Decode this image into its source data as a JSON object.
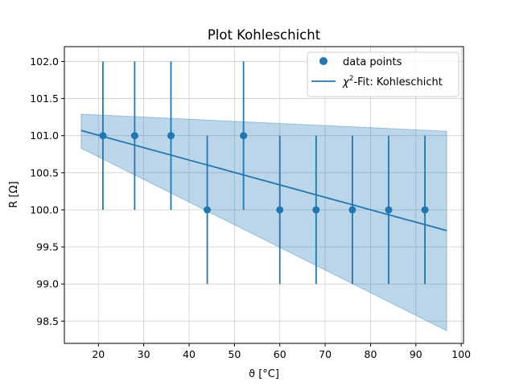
{
  "chart_data": {
    "type": "scatter",
    "title": "Plot Kohleschicht",
    "xlabel": "ϑ [°C]",
    "ylabel": "R [Ω]",
    "xlim": [
      12.5,
      100.5
    ],
    "ylim": [
      98.2,
      102.2
    ],
    "grid": true,
    "legend_position": "top-right",
    "x_ticks": [
      20,
      30,
      40,
      50,
      60,
      70,
      80,
      90,
      100
    ],
    "y_ticks": [
      98.5,
      99.0,
      99.5,
      100.0,
      100.5,
      101.0,
      101.5,
      102.0
    ],
    "x_tick_labels": [
      "20",
      "30",
      "40",
      "50",
      "60",
      "70",
      "80",
      "90",
      "100"
    ],
    "y_tick_labels": [
      "98.5",
      "99.0",
      "99.5",
      "100.0",
      "100.5",
      "101.0",
      "101.5",
      "102.0"
    ],
    "colors": {
      "series": "#1f77b4",
      "band": "#1f77b4",
      "grid": "#d0d0d0"
    },
    "series": [
      {
        "name": "data points",
        "kind": "errorbar-scatter",
        "x": [
          21,
          28,
          36,
          44,
          52,
          60,
          68,
          76,
          84,
          92
        ],
        "y": [
          101.0,
          101.0,
          101.0,
          100.0,
          101.0,
          100.0,
          100.0,
          100.0,
          100.0,
          100.0
        ],
        "yerr": [
          1,
          1,
          1,
          1,
          1,
          1,
          1,
          1,
          1,
          1
        ]
      },
      {
        "name": "χ²-Fit: Kohleschicht",
        "legend_prefix": "χ",
        "legend_sup": "2",
        "legend_suffix": "-Fit: Kohleschicht",
        "kind": "line",
        "x": [
          16.2,
          96.8
        ],
        "y": [
          101.07,
          99.72
        ],
        "band_upper": [
          101.29,
          101.06
        ],
        "band_lower": [
          100.83,
          98.37
        ]
      }
    ]
  }
}
